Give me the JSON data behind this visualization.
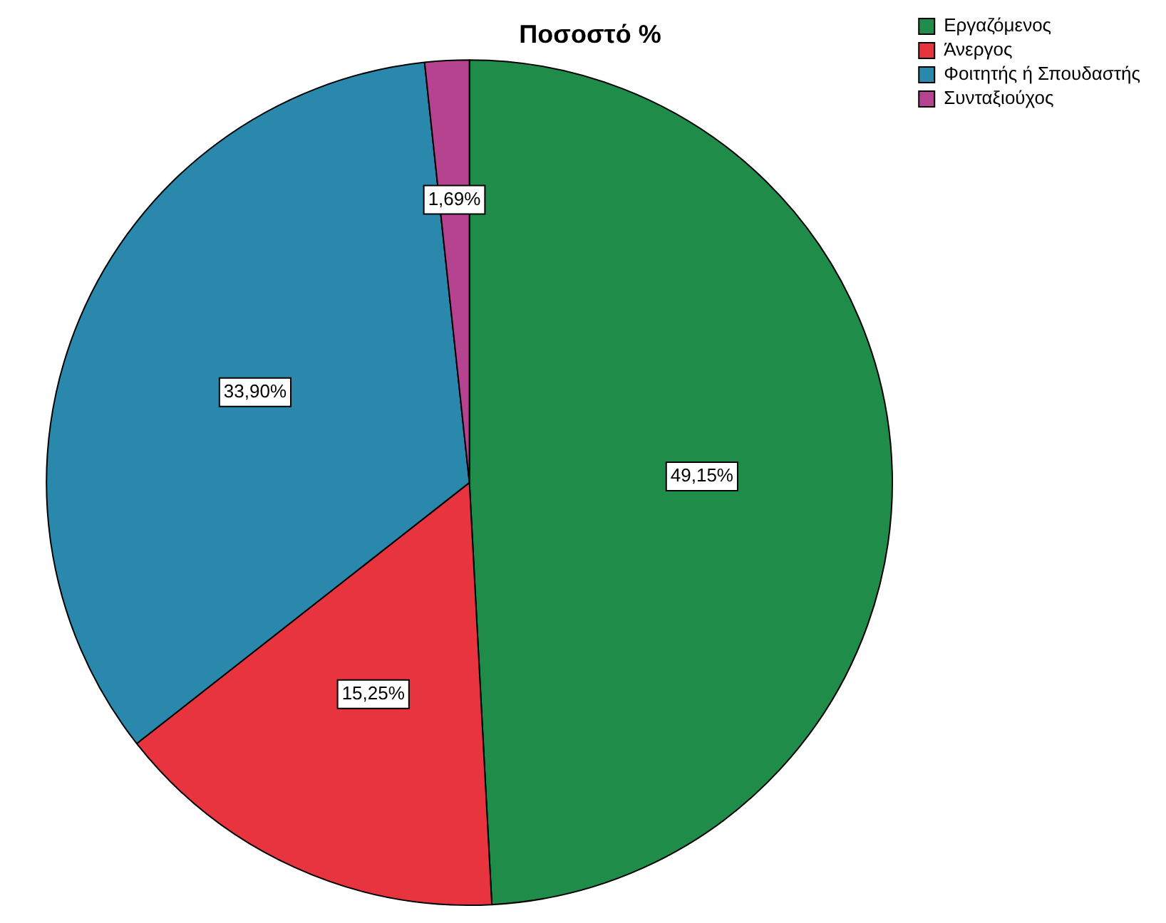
{
  "chart_data": {
    "type": "pie",
    "title": "Ποσοστό %",
    "categories": [
      "Εργαζόμενος",
      "Άνεργος",
      "Φοιτητής ή Σπουδαστής",
      "Συνταξιούχος"
    ],
    "values": [
      49.15,
      15.25,
      33.9,
      1.69
    ],
    "colors": [
      "#1f8c4a",
      "#e8343f",
      "#2a88ac",
      "#b5438f"
    ],
    "value_labels": [
      "49,15%",
      "15,25%",
      "33,90%",
      "1,69%"
    ],
    "legend": "top right"
  }
}
